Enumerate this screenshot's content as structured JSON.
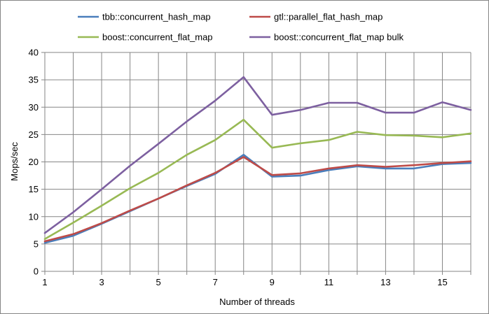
{
  "chart_data": {
    "type": "line",
    "xlabel": "Number of threads",
    "ylabel": "Mops/sec",
    "x": [
      1,
      2,
      3,
      4,
      5,
      6,
      7,
      8,
      9,
      10,
      11,
      12,
      13,
      14,
      15,
      16
    ],
    "x_tick_labels": [
      "1",
      "3",
      "5",
      "7",
      "9",
      "11",
      "13",
      "15"
    ],
    "x_tick_values": [
      1,
      3,
      5,
      7,
      9,
      11,
      13,
      15
    ],
    "xlim": [
      1,
      16
    ],
    "ylim": [
      0,
      40
    ],
    "y_ticks": [
      0,
      5,
      10,
      15,
      20,
      25,
      30,
      35,
      40
    ],
    "grid": true,
    "legend_position": "top",
    "series": [
      {
        "name": "tbb::concurrent_hash_map",
        "color": "#4a7ebb",
        "values": [
          5.2,
          6.5,
          8.7,
          11.0,
          13.3,
          15.6,
          17.8,
          21.3,
          17.3,
          17.5,
          18.5,
          19.2,
          18.8,
          18.8,
          19.6,
          19.8
        ]
      },
      {
        "name": "gtl::parallel_flat_hash_map",
        "color": "#be4b48",
        "values": [
          5.5,
          6.8,
          8.8,
          11.1,
          13.3,
          15.7,
          18.0,
          20.9,
          17.6,
          17.9,
          18.8,
          19.4,
          19.1,
          19.4,
          19.8,
          20.1
        ]
      },
      {
        "name": "boost::concurrent_flat_map",
        "color": "#98b954",
        "values": [
          5.9,
          8.9,
          12.0,
          15.2,
          18.0,
          21.3,
          24.0,
          27.7,
          22.6,
          23.4,
          24.0,
          25.5,
          24.9,
          24.8,
          24.5,
          25.2
        ]
      },
      {
        "name": "boost::concurrent_flat_map bulk",
        "color": "#7d60a0",
        "values": [
          7.0,
          10.8,
          15.0,
          19.3,
          23.3,
          27.4,
          31.2,
          35.5,
          28.6,
          29.5,
          30.8,
          30.8,
          29.0,
          29.0,
          30.9,
          29.5
        ]
      }
    ]
  }
}
